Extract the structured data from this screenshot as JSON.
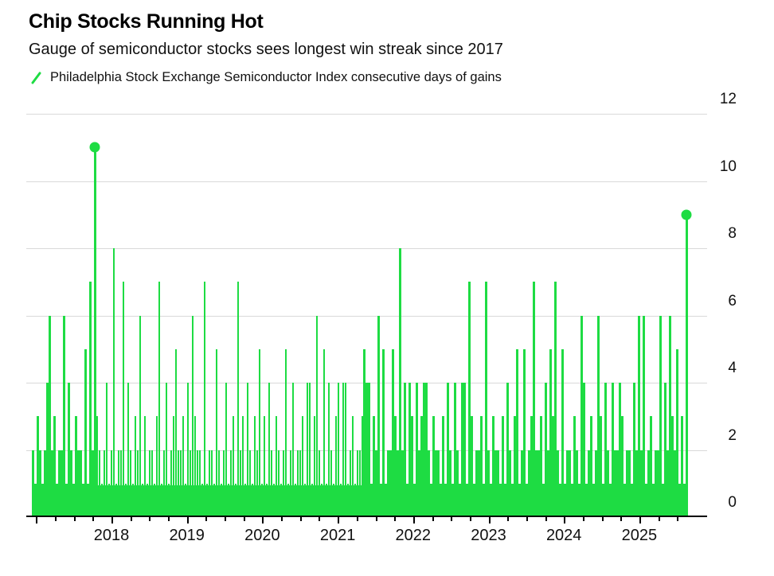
{
  "header": {
    "title": "Chip Stocks Running Hot",
    "subtitle": "Gauge of semiconductor stocks sees longest win streak since 2017",
    "legend_label": "Philadelphia Stock Exchange Semiconductor Index consecutive days of gains"
  },
  "colors": {
    "series_green": "#1edc43",
    "gridline": "#d9d9d9",
    "axis": "#000000",
    "text": "#111111"
  },
  "chart_data": {
    "type": "bar",
    "title": "Chip Stocks Running Hot",
    "subtitle": "Gauge of semiconductor stocks sees longest win streak since 2017",
    "series_name": "Philadelphia Stock Exchange Semiconductor Index consecutive days of gains",
    "ylabel": "consecutive days of gains",
    "ylim": [
      0,
      12
    ],
    "yticks": [
      0,
      2,
      4,
      6,
      8,
      10,
      12
    ],
    "x_start_year": 2017.0,
    "x_end_year": 2025.65,
    "x_tick_years_labeled": [
      2018,
      2019,
      2020,
      2021,
      2022,
      2023,
      2024,
      2025
    ],
    "x_minor_tick_interval_years": 0.25,
    "grid": "horizontal",
    "legend_position": "top-left",
    "values_note": "streak length per column, columns evenly spaced Jan 2017 - Aug 2025; peak 11-day streak in late 2017, current 9-day streak at series end",
    "values": [
      2,
      1,
      3,
      2,
      1,
      2,
      4,
      6,
      2,
      3,
      1,
      2,
      2,
      6,
      1,
      4,
      2,
      1,
      3,
      2,
      2,
      1,
      5,
      1,
      7,
      2,
      11,
      3,
      2,
      1,
      2,
      4,
      1,
      2,
      8,
      1,
      2,
      2,
      7,
      1,
      4,
      2,
      1,
      3,
      2,
      6,
      1,
      3,
      1,
      2,
      2,
      1,
      3,
      7,
      1,
      2,
      4,
      1,
      2,
      3,
      5,
      2,
      2,
      3,
      1,
      4,
      2,
      6,
      3,
      2,
      2,
      1,
      7,
      1,
      2,
      2,
      1,
      5,
      2,
      1,
      2,
      4,
      1,
      2,
      3,
      1,
      7,
      2,
      3,
      1,
      4,
      2,
      1,
      3,
      2,
      5,
      1,
      3,
      1,
      4,
      2,
      1,
      3,
      2,
      1,
      2,
      5,
      1,
      2,
      4,
      1,
      2,
      2,
      3,
      1,
      4,
      4,
      1,
      3,
      6,
      2,
      1,
      5,
      1,
      4,
      2,
      1,
      3,
      4,
      1,
      4,
      4,
      1,
      2,
      3,
      1,
      2,
      2,
      3,
      5,
      4,
      4,
      1,
      3,
      2,
      6,
      1,
      5,
      1,
      2,
      2,
      5,
      3,
      2,
      8,
      2,
      4,
      1,
      4,
      3,
      1,
      4,
      2,
      3,
      4,
      4,
      2,
      1,
      3,
      2,
      2,
      1,
      3,
      1,
      4,
      2,
      1,
      4,
      2,
      1,
      4,
      4,
      1,
      7,
      3,
      1,
      2,
      2,
      3,
      1,
      7,
      2,
      1,
      3,
      2,
      2,
      1,
      3,
      1,
      4,
      2,
      1,
      3,
      5,
      1,
      2,
      5,
      1,
      2,
      3,
      7,
      2,
      2,
      3,
      1,
      4,
      2,
      5,
      3,
      7,
      2,
      1,
      5,
      1,
      2,
      2,
      1,
      3,
      2,
      1,
      6,
      4,
      1,
      2,
      3,
      1,
      2,
      6,
      3,
      1,
      4,
      2,
      1,
      4,
      2,
      2,
      4,
      3,
      1,
      2,
      2,
      1,
      4,
      2,
      6,
      2,
      6,
      1,
      2,
      3,
      1,
      2,
      2,
      6,
      1,
      4,
      2,
      6,
      3,
      2,
      5,
      1,
      3,
      1,
      9
    ],
    "markers": [
      {
        "index": 26,
        "value": 11
      },
      {
        "index": 274,
        "value": 9
      }
    ]
  }
}
